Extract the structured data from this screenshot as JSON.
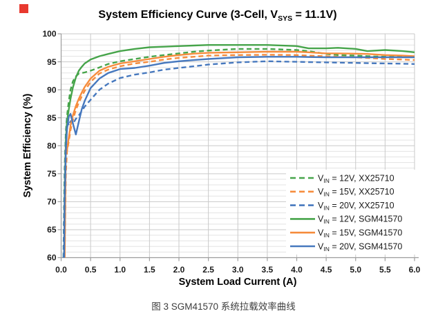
{
  "marker": {
    "color": "#e8392f"
  },
  "figure": {
    "caption": "图 3 SGM41570 系统拉载效率曲线"
  },
  "chart_data": {
    "type": "line",
    "title": {
      "pre": "System Efficiency Curve (3-Cell, V",
      "sub": "SYS",
      "post": " = 11.1V)"
    },
    "xlabel": "System Load Current (A)",
    "ylabel": "System Efficiency (%)",
    "xlim": [
      0,
      6
    ],
    "ylim": [
      60,
      100
    ],
    "x_tick_labels": [
      "0.0",
      "0.5",
      "1.0",
      "1.5",
      "2.0",
      "2.5",
      "3.0",
      "3.5",
      "4.0",
      "4.5",
      "5.0",
      "5.5",
      "6.0"
    ],
    "y_tick_labels": [
      "100",
      "95",
      "90",
      "85",
      "80",
      "75",
      "70",
      "65",
      "60"
    ],
    "x_grid_step": 0.5,
    "y_minor_step": 1,
    "y_major_step": 5,
    "grid": {
      "minor_color": "#e3e3e3",
      "major_color": "#c9c9c9",
      "axis_color": "#9c9c9c",
      "on": true
    },
    "legend_position": "inside-bottom-right",
    "x": [
      0.04,
      0.05,
      0.06,
      0.08,
      0.1,
      0.13,
      0.16,
      0.2,
      0.25,
      0.3,
      0.35,
      0.4,
      0.5,
      0.65,
      0.8,
      1.0,
      1.25,
      1.5,
      1.75,
      2.0,
      2.25,
      2.5,
      3.0,
      3.5,
      4.0,
      4.2,
      4.5,
      4.7,
      5.0,
      5.2,
      5.5,
      5.8,
      6.0
    ],
    "series": [
      {
        "label": {
          "pre": "V",
          "sub": "IN",
          "rest": " = 12V, XX25710"
        },
        "color": "#46a44a",
        "dashed": true,
        "values": [
          60,
          70,
          76,
          82.5,
          85.3,
          88,
          90,
          91.5,
          92.4,
          92.9,
          93,
          93.1,
          93.4,
          94,
          94.6,
          95.1,
          95.5,
          95.9,
          96.2,
          96.5,
          96.8,
          97,
          97.3,
          97.3,
          97.1,
          96.9,
          96.4,
          96.2,
          96.1,
          96,
          95.9,
          95.9,
          95.9
        ]
      },
      {
        "label": {
          "pre": "V",
          "sub": "IN",
          "rest": " = 15V, XX25710"
        },
        "color": "#f68c3c",
        "dashed": true,
        "values": [
          null,
          null,
          60,
          75,
          79,
          80.8,
          82.8,
          84.6,
          86.4,
          87.7,
          88.8,
          89.8,
          91.4,
          92.9,
          93.6,
          94.2,
          94.7,
          95,
          95.4,
          95.7,
          95.9,
          96.1,
          96.2,
          96.25,
          96.2,
          96.1,
          96,
          95.9,
          95.8,
          95.7,
          95.5,
          95.4,
          95.3
        ]
      },
      {
        "label": {
          "pre": "V",
          "sub": "IN",
          "rest": " = 20V, XX25710"
        },
        "color": "#4678be",
        "dashed": true,
        "values": [
          60,
          68,
          75,
          82,
          85,
          83.6,
          84.4,
          83.9,
          84.8,
          85.4,
          86.2,
          87,
          88.2,
          90,
          91.1,
          92.1,
          92.7,
          93.1,
          93.6,
          93.9,
          94.2,
          94.5,
          94.9,
          95.1,
          95,
          94.95,
          94.9,
          94.85,
          94.8,
          94.75,
          94.7,
          94.65,
          94.6
        ]
      },
      {
        "label": {
          "pre": "V",
          "sub": "IN",
          "rest": " = 12V, SGM41570"
        },
        "color": "#46a44a",
        "dashed": false,
        "values": [
          null,
          60,
          72,
          81,
          84.4,
          86.5,
          88.4,
          90.4,
          92.2,
          93.4,
          94.1,
          94.7,
          95.4,
          96,
          96.4,
          96.9,
          97.3,
          97.6,
          97.7,
          97.8,
          97.9,
          98,
          98,
          98,
          97.8,
          97.4,
          97.4,
          97.5,
          97.3,
          96.9,
          97.1,
          96.9,
          96.7
        ]
      },
      {
        "label": {
          "pre": "V",
          "sub": "IN",
          "rest": " = 15V, SGM41570"
        },
        "color": "#f68c3c",
        "dashed": false,
        "values": [
          null,
          null,
          60,
          79.5,
          79.2,
          81.5,
          83.6,
          85.4,
          87.1,
          88.4,
          89.5,
          90.5,
          92,
          93.4,
          94.1,
          94.7,
          95.1,
          95.5,
          95.9,
          96.2,
          96.45,
          96.6,
          96.7,
          96.8,
          96.8,
          96.7,
          96.5,
          96.5,
          96.45,
          96.4,
          96.2,
          96.1,
          96
        ]
      },
      {
        "label": {
          "pre": "V",
          "sub": "IN",
          "rest": " = 20V, SGM41570"
        },
        "color": "#4678be",
        "dashed": false,
        "values": [
          null,
          60,
          70,
          79,
          83,
          85.2,
          85.7,
          84,
          82,
          84.3,
          86.5,
          88,
          90.3,
          92,
          93,
          93.7,
          93.9,
          94.3,
          94.8,
          95.1,
          95.3,
          95.5,
          95.8,
          95.9,
          95.9,
          95.85,
          95.8,
          95.8,
          95.8,
          95.8,
          95.8,
          95.8,
          95.8
        ]
      }
    ]
  }
}
